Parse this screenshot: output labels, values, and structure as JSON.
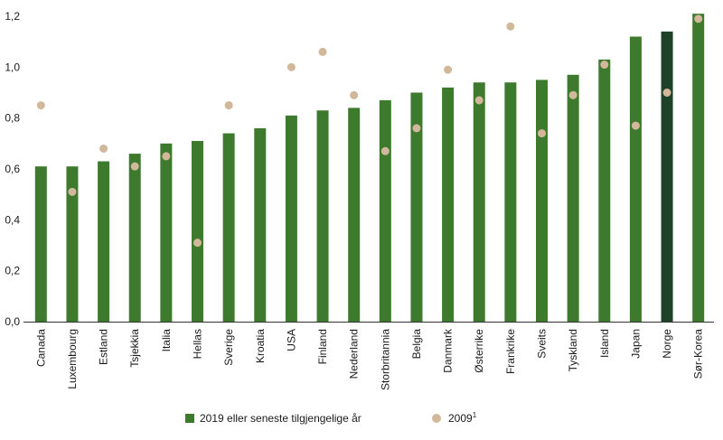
{
  "chart_data": {
    "type": "bar",
    "categories": [
      "Canada",
      "Luxembourg",
      "Estland",
      "Tsjekkia",
      "Italia",
      "Hellas",
      "Sverige",
      "Kroatia",
      "USA",
      "Finland",
      "Nederland",
      "Storbritannia",
      "Belgia",
      "Danmark",
      "Østerrike",
      "Frankrike",
      "Sveits",
      "Tyskland",
      "Island",
      "Japan",
      "Norge",
      "Sør-Korea"
    ],
    "series": [
      {
        "name": "2019 eller seneste tilgjengelige år",
        "type": "bar",
        "color": "#3e7a2e",
        "values": [
          0.61,
          0.61,
          0.63,
          0.66,
          0.7,
          0.71,
          0.74,
          0.76,
          0.81,
          0.83,
          0.84,
          0.87,
          0.9,
          0.92,
          0.94,
          0.94,
          0.95,
          0.97,
          1.03,
          1.12,
          1.14,
          1.21
        ]
      },
      {
        "name": "2009",
        "name_superscript": "1",
        "type": "scatter",
        "color": "#d2b89a",
        "values": [
          0.85,
          0.51,
          0.68,
          0.61,
          0.65,
          0.31,
          0.85,
          null,
          1.0,
          1.06,
          0.89,
          0.67,
          0.76,
          0.99,
          0.87,
          1.16,
          0.74,
          0.89,
          1.01,
          0.77,
          0.9,
          1.19
        ]
      }
    ],
    "highlight": {
      "category": "Norge",
      "color": "#1e4228"
    },
    "yticks": [
      "0,0",
      "0,2",
      "0,4",
      "0,6",
      "0,8",
      "1,0",
      "1,2"
    ],
    "ylim": [
      0,
      1.2
    ],
    "grid": false,
    "legend_position": "bottom",
    "title": "",
    "xlabel": "",
    "ylabel": ""
  }
}
